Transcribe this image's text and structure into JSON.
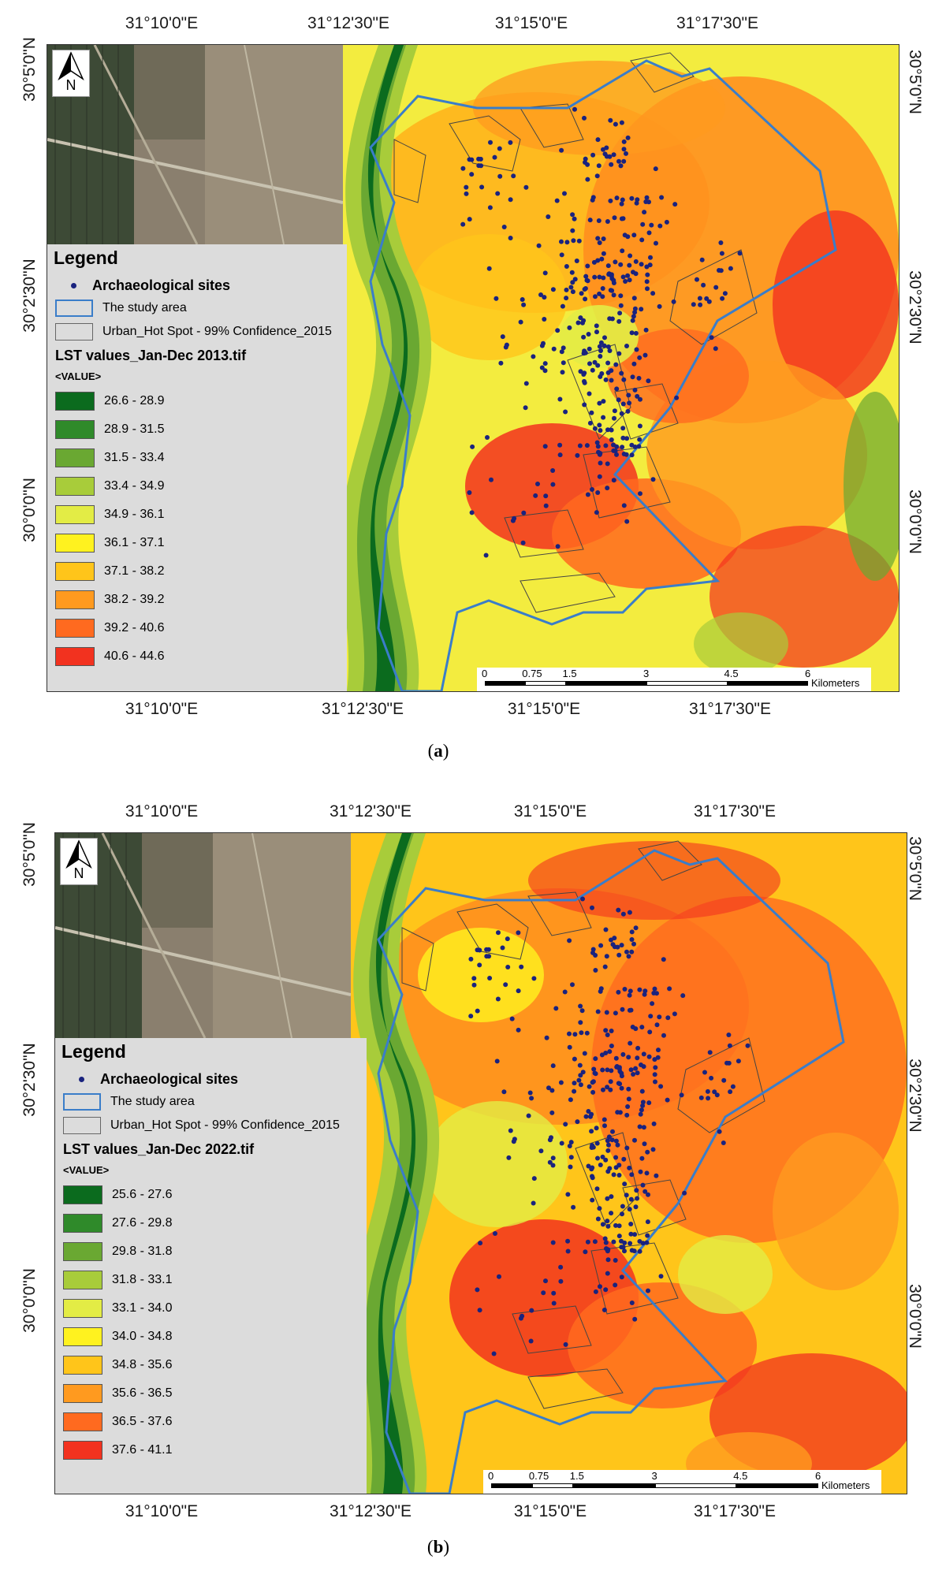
{
  "maps": [
    {
      "id": "a",
      "caption_letter": "a",
      "top_lon_labels": [
        "31°10'0\"E",
        "31°12'30\"E",
        "31°15'0\"E",
        "31°17'30\"E"
      ],
      "bottom_lon_labels": [
        "31°10'0\"E",
        "31°12'30\"E",
        "31°15'0\"E",
        "31°17'30\"E"
      ],
      "left_lat_labels": [
        "30°5'0\"N",
        "30°2'30\"N",
        "30°0'0\"N"
      ],
      "right_lat_labels": [
        "30°5'0\"N",
        "30°2'30\"N",
        "30°0'0\"N"
      ],
      "north_label": "N",
      "legend": {
        "title": "Legend",
        "sites_label": "Archaeological sites",
        "study_area_label": "The study area",
        "hotspot_label": "Urban_Hot Spot - 99% Confidence_2015",
        "lst_title": "LST values_Jan-Dec 2013.tif",
        "value_label": "<VALUE>",
        "classes": [
          {
            "range": "26.6 - 28.9",
            "color": "#0b6b1e"
          },
          {
            "range": "28.9 - 31.5",
            "color": "#2f8a2a"
          },
          {
            "range": "31.5 - 33.4",
            "color": "#6aa832"
          },
          {
            "range": "33.4 - 34.9",
            "color": "#a8cc3a"
          },
          {
            "range": "34.9 - 36.1",
            "color": "#e3ec45"
          },
          {
            "range": "36.1 - 37.1",
            "color": "#fff21f"
          },
          {
            "range": "37.1 - 38.2",
            "color": "#ffc51a"
          },
          {
            "range": "38.2 - 39.2",
            "color": "#ff9a1f"
          },
          {
            "range": "39.2 - 40.6",
            "color": "#ff6a1f"
          },
          {
            "range": "40.6 - 44.6",
            "color": "#f2321f"
          }
        ]
      },
      "scalebar": {
        "ticks": [
          "0",
          "0.75",
          "1.5",
          "3",
          "4.5",
          "6"
        ],
        "unit": "Kilometers"
      }
    },
    {
      "id": "b",
      "caption_letter": "b",
      "top_lon_labels": [
        "31°10'0\"E",
        "31°12'30\"E",
        "31°15'0\"E",
        "31°17'30\"E"
      ],
      "bottom_lon_labels": [
        "31°10'0\"E",
        "31°12'30\"E",
        "31°15'0\"E",
        "31°17'30\"E"
      ],
      "left_lat_labels": [
        "30°5'0\"N",
        "30°2'30\"N",
        "30°0'0\"N"
      ],
      "right_lat_labels": [
        "30°5'0\"N",
        "30°2'30\"N",
        "30°0'0\"N"
      ],
      "north_label": "N",
      "legend": {
        "title": "Legend",
        "sites_label": "Archaeological sites",
        "study_area_label": "The study area",
        "hotspot_label": "Urban_Hot Spot - 99% Confidence_2015",
        "lst_title": "LST values_Jan-Dec 2022.tif",
        "value_label": "<VALUE>",
        "classes": [
          {
            "range": "25.6 - 27.6",
            "color": "#0b6b1e"
          },
          {
            "range": "27.6 - 29.8",
            "color": "#2f8a2a"
          },
          {
            "range": "29.8 - 31.8",
            "color": "#6aa832"
          },
          {
            "range": "31.8 - 33.1",
            "color": "#a8cc3a"
          },
          {
            "range": "33.1 - 34.0",
            "color": "#e3ec45"
          },
          {
            "range": "34.0 - 34.8",
            "color": "#fff21f"
          },
          {
            "range": "34.8 - 35.6",
            "color": "#ffc51a"
          },
          {
            "range": "35.6 - 36.5",
            "color": "#ff9a1f"
          },
          {
            "range": "36.5 - 37.6",
            "color": "#ff6a1f"
          },
          {
            "range": "37.6 - 41.1",
            "color": "#f2321f"
          }
        ]
      },
      "scalebar": {
        "ticks": [
          "0",
          "0.75",
          "1.5",
          "3",
          "4.5",
          "6"
        ],
        "unit": "Kilometers"
      }
    }
  ],
  "colors": {
    "study_area": "#3a7dc9",
    "sites": "#1a237e",
    "legend_bg": "#dcdcdc"
  }
}
